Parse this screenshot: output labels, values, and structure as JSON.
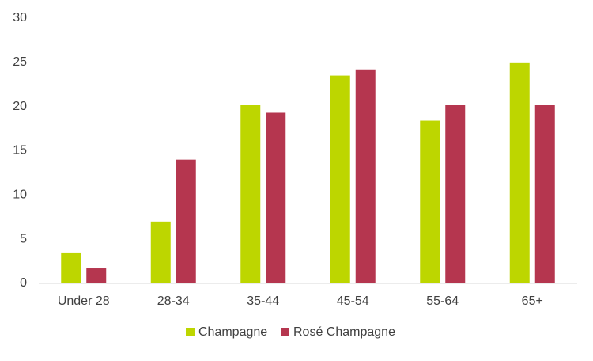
{
  "chart_data": {
    "type": "bar",
    "categories": [
      "Under 28",
      "28-34",
      "35-44",
      "45-54",
      "55-64",
      "65+"
    ],
    "series": [
      {
        "name": "Champagne",
        "color": "#bdd600",
        "values": [
          3.5,
          7,
          20.2,
          23.5,
          18.4,
          25
        ]
      },
      {
        "name": "Rosé Champagne",
        "color": "#b5364f",
        "values": [
          1.7,
          14,
          19.3,
          24.2,
          20.2,
          20.2
        ]
      }
    ],
    "ylim": [
      0,
      30
    ],
    "yticks": [
      0,
      5,
      10,
      15,
      20,
      25,
      30
    ],
    "grid": false,
    "legend": "bottom"
  }
}
